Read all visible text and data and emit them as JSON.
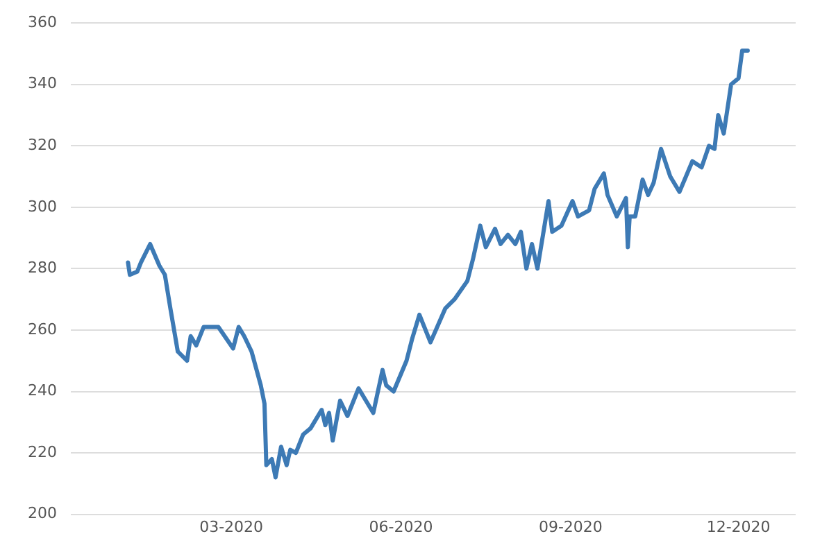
{
  "chart_data": {
    "type": "line",
    "x": [
      "2020-01-05",
      "2020-01-06",
      "2020-01-10",
      "2020-01-12",
      "2020-01-17",
      "2020-01-22",
      "2020-01-25",
      "2020-01-28",
      "2020-02-01",
      "2020-02-06",
      "2020-02-08",
      "2020-02-11",
      "2020-02-15",
      "2020-02-23",
      "2020-03-02",
      "2020-03-05",
      "2020-03-08",
      "2020-03-12",
      "2020-03-17",
      "2020-03-19",
      "2020-03-20",
      "2020-03-23",
      "2020-03-25",
      "2020-03-28",
      "2020-03-31",
      "2020-04-02",
      "2020-04-05",
      "2020-04-09",
      "2020-04-13",
      "2020-04-19",
      "2020-04-21",
      "2020-04-23",
      "2020-04-25",
      "2020-04-29",
      "2020-05-03",
      "2020-05-09",
      "2020-05-17",
      "2020-05-22",
      "2020-05-24",
      "2020-05-28",
      "2020-06-04",
      "2020-06-07",
      "2020-06-11",
      "2020-06-17",
      "2020-06-25",
      "2020-06-30",
      "2020-07-07",
      "2020-07-10",
      "2020-07-14",
      "2020-07-17",
      "2020-07-22",
      "2020-07-25",
      "2020-07-29",
      "2020-08-02",
      "2020-08-05",
      "2020-08-08",
      "2020-08-11",
      "2020-08-14",
      "2020-08-20",
      "2020-08-22",
      "2020-08-27",
      "2020-09-02",
      "2020-09-05",
      "2020-09-11",
      "2020-09-14",
      "2020-09-19",
      "2020-09-21",
      "2020-09-26",
      "2020-10-01",
      "2020-10-02",
      "2020-10-03",
      "2020-10-06",
      "2020-10-10",
      "2020-10-13",
      "2020-10-16",
      "2020-10-20",
      "2020-10-25",
      "2020-10-30",
      "2020-11-06",
      "2020-11-11",
      "2020-11-15",
      "2020-11-18",
      "2020-11-20",
      "2020-11-23",
      "2020-11-27",
      "2020-12-01",
      "2020-12-03",
      "2020-12-06"
    ],
    "series": [
      {
        "color": "#3d7ab5",
        "values": [
          282,
          278,
          279,
          282,
          288,
          281,
          278,
          267,
          253,
          250,
          258,
          255,
          261,
          261,
          254,
          261,
          258,
          253,
          242,
          236,
          216,
          218,
          212,
          222,
          216,
          221,
          220,
          226,
          228,
          234,
          229,
          233,
          224,
          237,
          232,
          241,
          233,
          247,
          242,
          240,
          250,
          257,
          265,
          256,
          267,
          270,
          276,
          283,
          294,
          287,
          293,
          288,
          291,
          288,
          292,
          280,
          288,
          280,
          302,
          292,
          294,
          302,
          297,
          299,
          306,
          311,
          304,
          297,
          303,
          287,
          297,
          297,
          309,
          304,
          308,
          319,
          310,
          305,
          315,
          313,
          320,
          319,
          330,
          324,
          340,
          342,
          351,
          351
        ]
      }
    ],
    "xlim": [
      "2019-12-05",
      "2021-01-01"
    ],
    "xticks": [
      {
        "value": "2020-03-01",
        "label": "03-2020"
      },
      {
        "value": "2020-06-01",
        "label": "06-2020"
      },
      {
        "value": "2020-09-01",
        "label": "09-2020"
      },
      {
        "value": "2020-12-01",
        "label": "12-2020"
      }
    ],
    "ylim": [
      200,
      360
    ],
    "yticks": [
      200,
      220,
      240,
      260,
      280,
      300,
      320,
      340,
      360
    ],
    "grid": "y",
    "legend": false,
    "marker": "none",
    "line_style": "solid"
  }
}
